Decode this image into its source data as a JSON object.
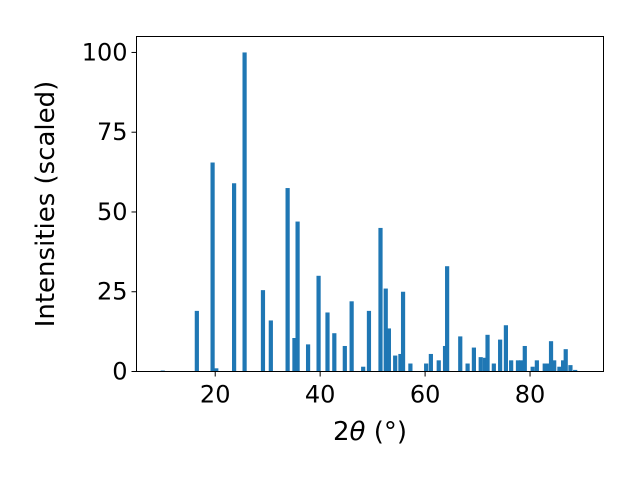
{
  "chart_data": {
    "type": "bar",
    "title": "",
    "xlabel_parts": {
      "prefix": "2",
      "symbol": "θ",
      "unit": " (°)"
    },
    "ylabel": "Intensities (scaled)",
    "xlim": [
      5,
      94
    ],
    "ylim": [
      0,
      105
    ],
    "xticks": [
      20,
      40,
      60,
      80
    ],
    "yticks": [
      0,
      25,
      50,
      75,
      100
    ],
    "grid": false,
    "bar_color": "#1f77b4",
    "bar_width": 0.8,
    "x": [
      10.0,
      16.5,
      19.5,
      20.2,
      23.6,
      25.6,
      29.1,
      30.6,
      33.8,
      35.1,
      35.7,
      37.7,
      39.7,
      41.4,
      42.7,
      44.7,
      46.0,
      48.2,
      49.3,
      51.5,
      52.5,
      53.1,
      54.3,
      55.3,
      55.8,
      57.2,
      60.2,
      61.1,
      62.6,
      63.8,
      64.2,
      66.7,
      68.1,
      69.3,
      70.6,
      71.4,
      71.9,
      73.1,
      74.3,
      75.4,
      76.4,
      77.7,
      78.3,
      79.0,
      80.5,
      81.3,
      82.8,
      83.5,
      84.0,
      84.6,
      85.6,
      86.3,
      86.8,
      87.7,
      88.6
    ],
    "values": [
      0.3,
      19,
      65.5,
      1.0,
      59,
      100,
      25.5,
      16,
      57.5,
      10.5,
      47,
      8.5,
      30,
      18.5,
      12,
      8,
      22,
      1.5,
      19,
      45,
      26,
      13.5,
      5,
      5.5,
      25,
      2.5,
      2.5,
      5.5,
      3.5,
      8,
      33,
      11,
      2.5,
      7.5,
      4.5,
      4.3,
      11.5,
      2.5,
      10,
      14.5,
      3.5,
      3.5,
      3.5,
      8,
      1.5,
      3.5,
      2.5,
      2.5,
      9.5,
      3.5,
      1.5,
      3.5,
      7,
      2,
      0.5
    ]
  }
}
